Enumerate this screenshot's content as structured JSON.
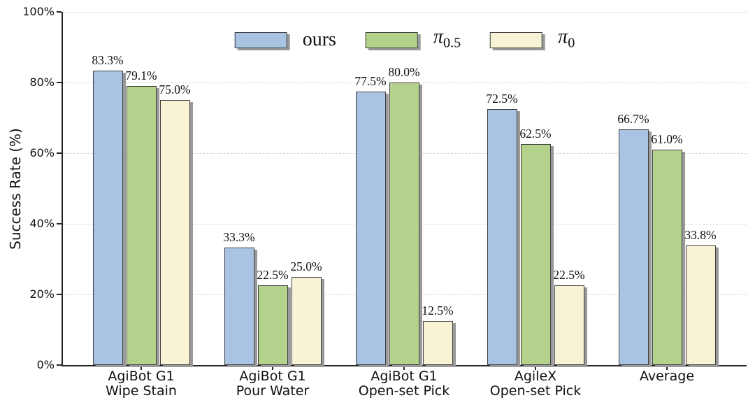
{
  "chart_data": {
    "type": "bar",
    "title": "",
    "xlabel": "",
    "ylabel": "Success Rate (%)",
    "ylim": [
      0,
      100
    ],
    "grid": "horizontal dashed",
    "legend_position": "top center",
    "yticks": [
      {
        "value": 0,
        "label": "0%"
      },
      {
        "value": 20,
        "label": "20%"
      },
      {
        "value": 40,
        "label": "40%"
      },
      {
        "value": 60,
        "label": "60%"
      },
      {
        "value": 80,
        "label": "80%"
      },
      {
        "value": 100,
        "label": "100%"
      }
    ],
    "categories": [
      "AgiBot G1\nWipe Stain",
      "AgiBot G1\nPour Water",
      "AgiBot G1\nOpen-set Pick",
      "AgileX\nOpen-set Pick",
      "Average"
    ],
    "series": [
      {
        "name": "ours",
        "label_base": "ours",
        "label_sub": "",
        "color": "#a8c4e2",
        "values": [
          83.3,
          33.3,
          77.5,
          72.5,
          66.7
        ],
        "labels": [
          "83.3%",
          "33.3%",
          "77.5%",
          "72.5%",
          "66.7%"
        ]
      },
      {
        "name": "pi_0.5",
        "label_base": "π",
        "label_sub": "0.5",
        "color": "#b5d28c",
        "values": [
          79.1,
          22.5,
          80.0,
          62.5,
          61.0
        ],
        "labels": [
          "79.1%",
          "22.5%",
          "80.0%",
          "62.5%",
          "61.0%"
        ]
      },
      {
        "name": "pi_0",
        "label_base": "π",
        "label_sub": "0",
        "color": "#f8f3d5",
        "values": [
          75.0,
          25.0,
          12.5,
          22.5,
          33.8
        ],
        "labels": [
          "75.0%",
          "25.0%",
          "12.5%",
          "22.5%",
          "33.8%"
        ]
      }
    ],
    "colors": {
      "bar_border": "#3f3f3f",
      "shadow": "#9a9a9a",
      "grid": "#d7d7d7",
      "axis": "#262626",
      "text": "#111111"
    }
  }
}
